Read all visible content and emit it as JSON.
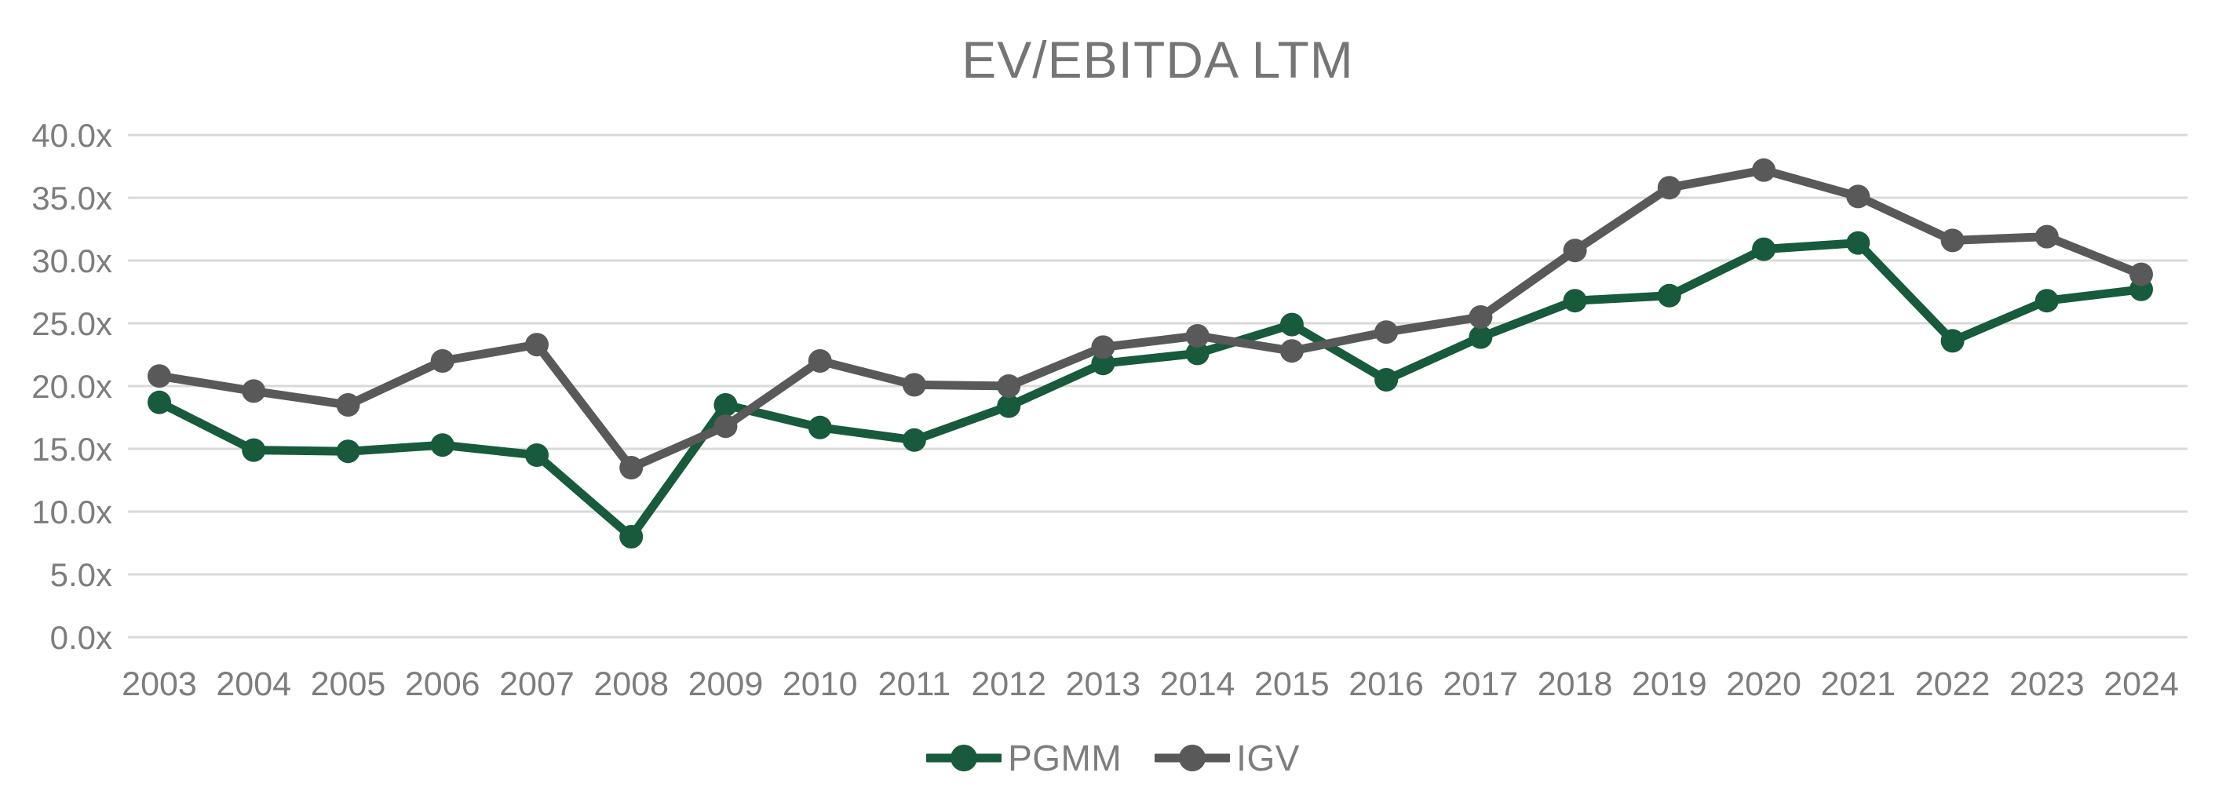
{
  "chart_data": {
    "type": "line",
    "title": "EV/EBITDA LTM",
    "categories": [
      "2003",
      "2004",
      "2005",
      "2006",
      "2007",
      "2008",
      "2009",
      "2010",
      "2011",
      "2012",
      "2013",
      "2014",
      "2015",
      "2016",
      "2017",
      "2018",
      "2019",
      "2020",
      "2021",
      "2022",
      "2023",
      "2024"
    ],
    "series": [
      {
        "name": "PGMM",
        "color": "#175A3C",
        "values": [
          18.7,
          14.9,
          14.8,
          15.3,
          14.5,
          8.0,
          18.5,
          16.7,
          15.7,
          18.4,
          21.8,
          22.6,
          24.9,
          20.5,
          23.9,
          26.8,
          27.2,
          30.9,
          31.4,
          23.6,
          26.8,
          27.7
        ]
      },
      {
        "name": "IGV",
        "color": "#595959",
        "values": [
          20.8,
          19.6,
          18.5,
          22.0,
          23.3,
          13.5,
          16.8,
          22.0,
          20.1,
          20.0,
          23.1,
          24.0,
          22.8,
          24.3,
          25.5,
          30.8,
          35.8,
          37.2,
          35.1,
          31.6,
          31.9,
          28.9
        ]
      }
    ],
    "y_axis": {
      "min": 0,
      "max": 40,
      "step": 5,
      "tick_labels": [
        "0.0x",
        "5.0x",
        "10.0x",
        "15.0x",
        "20.0x",
        "25.0x",
        "30.0x",
        "35.0x",
        "40.0x"
      ]
    },
    "x_axis": {
      "tick_labels": [
        "2003",
        "2004",
        "2005",
        "2006",
        "2007",
        "2008",
        "2009",
        "2010",
        "2011",
        "2012",
        "2013",
        "2014",
        "2015",
        "2016",
        "2017",
        "2018",
        "2019",
        "2020",
        "2021",
        "2022",
        "2023",
        "2024"
      ]
    },
    "legend": {
      "position": "bottom",
      "entries": [
        "PGMM",
        "IGV"
      ]
    },
    "grid": true,
    "colors": {
      "gridline": "#D9D9D9",
      "axis_text": "#7D7D7D",
      "title_text": "#757575",
      "background": "#FFFFFF"
    }
  }
}
